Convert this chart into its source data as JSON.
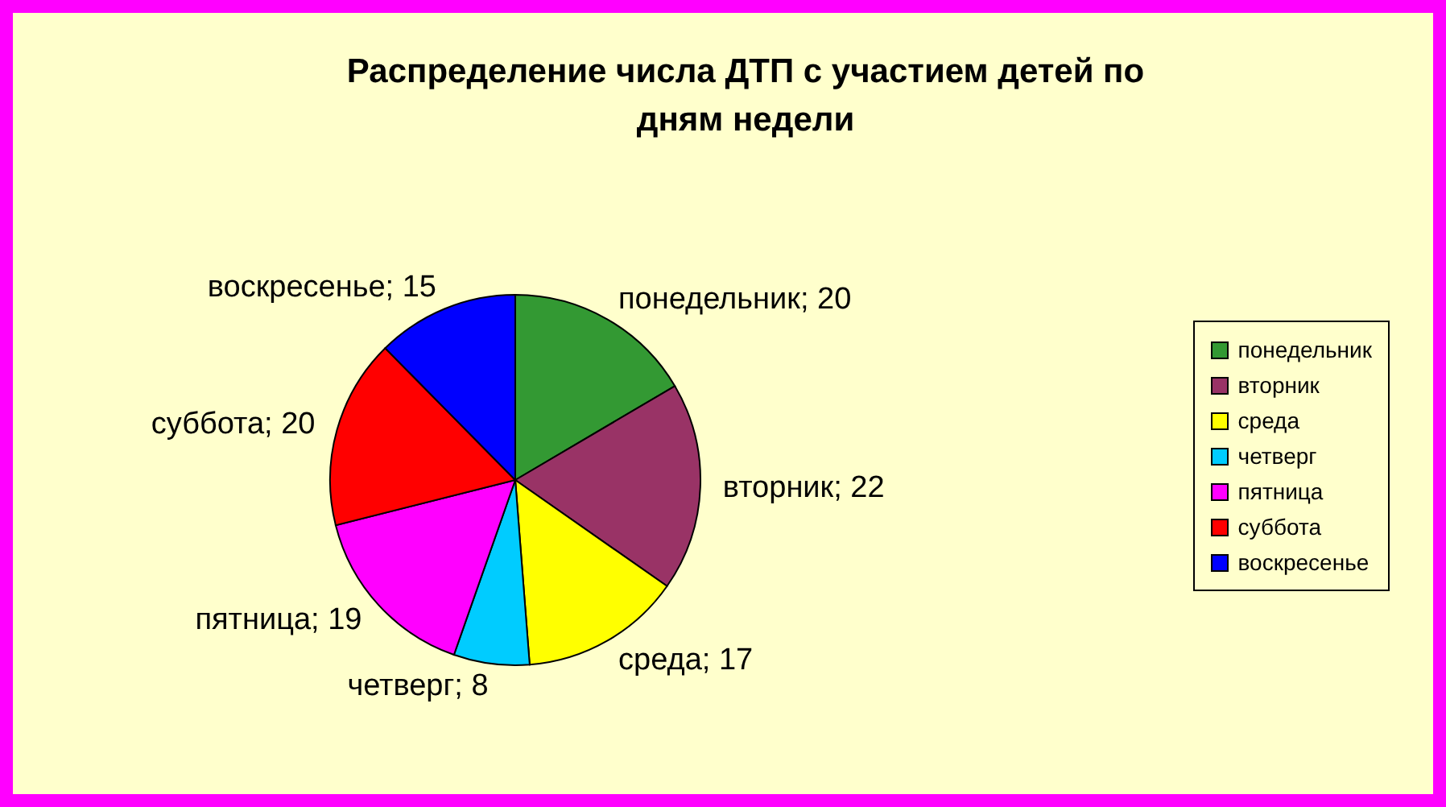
{
  "chart_data": {
    "type": "pie",
    "title": "Распределение числа ДТП с участием детей по дням недели",
    "categories": [
      "понедельник",
      "вторник",
      "среда",
      "четверг",
      "пятница",
      "суббота",
      "воскресенье"
    ],
    "values": [
      20,
      22,
      17,
      8,
      19,
      20,
      15
    ],
    "value_labels": [
      "понедельник; 20",
      "вторник; 22",
      "среда; 17",
      "четверг; 8",
      "пятница; 19",
      "суббота; 20",
      "воскресенье; 15"
    ],
    "colors": [
      "#339933",
      "#993366",
      "#ffff00",
      "#00ccff",
      "#ff00ff",
      "#ff0000",
      "#0000ff"
    ],
    "legend": "right"
  }
}
